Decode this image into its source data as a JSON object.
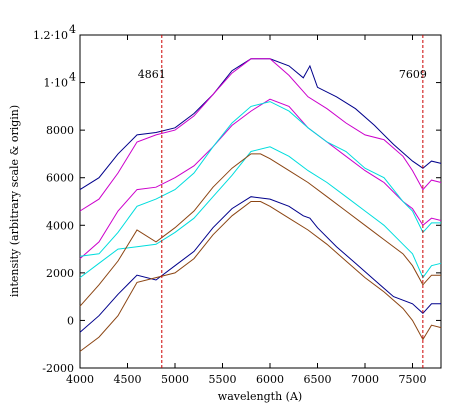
{
  "chart_data": {
    "type": "line",
    "xlabel": "wavelength (A)",
    "ylabel": "intensity (arbitrary scale & origin)",
    "xlim": [
      4000,
      7800
    ],
    "ylim": [
      -2000,
      12000
    ],
    "grid": false,
    "legend": "none",
    "x_ticks": [
      4000,
      4500,
      5000,
      5500,
      6000,
      6500,
      7000,
      7500
    ],
    "y_ticks": [
      {
        "value": -2000,
        "label": "-2000"
      },
      {
        "value": 0,
        "label": "0"
      },
      {
        "value": 2000,
        "label": "2000"
      },
      {
        "value": 4000,
        "label": "4000"
      },
      {
        "value": 6000,
        "label": "6000"
      },
      {
        "value": 8000,
        "label": "8000"
      },
      {
        "value": 10000,
        "label": "1·10",
        "exp": "4"
      },
      {
        "value": 12000,
        "label": "1.2·10",
        "exp": "4"
      }
    ],
    "vlines": [
      {
        "x": 4861,
        "label": "4861",
        "label_y": 10200,
        "color": "#cc0000"
      },
      {
        "x": 7609,
        "label": "7609",
        "label_y": 10200,
        "color": "#cc0000"
      }
    ],
    "series": [
      {
        "color": "#00008b",
        "points": [
          [
            4000,
            5500
          ],
          [
            4200,
            6000
          ],
          [
            4400,
            7000
          ],
          [
            4600,
            7800
          ],
          [
            4800,
            7900
          ],
          [
            5000,
            8100
          ],
          [
            5200,
            8700
          ],
          [
            5400,
            9500
          ],
          [
            5600,
            10500
          ],
          [
            5800,
            11000
          ],
          [
            6000,
            11000
          ],
          [
            6200,
            10700
          ],
          [
            6350,
            10200
          ],
          [
            6420,
            10700
          ],
          [
            6500,
            9800
          ],
          [
            6700,
            9400
          ],
          [
            6900,
            8900
          ],
          [
            7100,
            8200
          ],
          [
            7300,
            7400
          ],
          [
            7500,
            6700
          ],
          [
            7609,
            6400
          ],
          [
            7700,
            6700
          ],
          [
            7800,
            6600
          ]
        ]
      },
      {
        "color": "#cc00cc",
        "points": [
          [
            4000,
            4600
          ],
          [
            4200,
            5100
          ],
          [
            4400,
            6200
          ],
          [
            4600,
            7500
          ],
          [
            4800,
            7800
          ],
          [
            5000,
            8000
          ],
          [
            5200,
            8600
          ],
          [
            5400,
            9500
          ],
          [
            5600,
            10400
          ],
          [
            5800,
            11000
          ],
          [
            6000,
            11000
          ],
          [
            6200,
            10300
          ],
          [
            6400,
            9400
          ],
          [
            6600,
            8900
          ],
          [
            6800,
            8300
          ],
          [
            7000,
            7800
          ],
          [
            7200,
            7600
          ],
          [
            7400,
            6900
          ],
          [
            7500,
            6300
          ],
          [
            7609,
            5500
          ],
          [
            7700,
            5900
          ],
          [
            7800,
            5800
          ]
        ]
      },
      {
        "color": "#cc00cc",
        "points": [
          [
            4000,
            2600
          ],
          [
            4200,
            3300
          ],
          [
            4400,
            4600
          ],
          [
            4600,
            5500
          ],
          [
            4800,
            5600
          ],
          [
            5000,
            6000
          ],
          [
            5200,
            6500
          ],
          [
            5400,
            7300
          ],
          [
            5600,
            8200
          ],
          [
            5800,
            8800
          ],
          [
            6000,
            9300
          ],
          [
            6200,
            9000
          ],
          [
            6400,
            8100
          ],
          [
            6600,
            7500
          ],
          [
            6800,
            6900
          ],
          [
            7000,
            6300
          ],
          [
            7200,
            5800
          ],
          [
            7400,
            5000
          ],
          [
            7500,
            4700
          ],
          [
            7609,
            4000
          ],
          [
            7700,
            4300
          ],
          [
            7800,
            4200
          ]
        ]
      },
      {
        "color": "#00dddd",
        "points": [
          [
            4000,
            2700
          ],
          [
            4200,
            2800
          ],
          [
            4400,
            3700
          ],
          [
            4600,
            4800
          ],
          [
            4800,
            5100
          ],
          [
            5000,
            5500
          ],
          [
            5200,
            6200
          ],
          [
            5400,
            7300
          ],
          [
            5600,
            8300
          ],
          [
            5800,
            9000
          ],
          [
            6000,
            9200
          ],
          [
            6200,
            8800
          ],
          [
            6400,
            8100
          ],
          [
            6600,
            7500
          ],
          [
            6800,
            7100
          ],
          [
            7000,
            6400
          ],
          [
            7200,
            6000
          ],
          [
            7400,
            5000
          ],
          [
            7500,
            4600
          ],
          [
            7609,
            3700
          ],
          [
            7700,
            4100
          ],
          [
            7800,
            4100
          ]
        ]
      },
      {
        "color": "#00dddd",
        "points": [
          [
            4000,
            1800
          ],
          [
            4200,
            2400
          ],
          [
            4400,
            3000
          ],
          [
            4600,
            3100
          ],
          [
            4800,
            3200
          ],
          [
            5000,
            3700
          ],
          [
            5200,
            4300
          ],
          [
            5400,
            5200
          ],
          [
            5600,
            6100
          ],
          [
            5800,
            7100
          ],
          [
            6000,
            7300
          ],
          [
            6200,
            6900
          ],
          [
            6400,
            6300
          ],
          [
            6600,
            5800
          ],
          [
            6800,
            5200
          ],
          [
            7000,
            4600
          ],
          [
            7200,
            4000
          ],
          [
            7400,
            3200
          ],
          [
            7500,
            2800
          ],
          [
            7609,
            1800
          ],
          [
            7700,
            2300
          ],
          [
            7800,
            2400
          ]
        ]
      },
      {
        "color": "#8b4513",
        "points": [
          [
            4000,
            600
          ],
          [
            4200,
            1500
          ],
          [
            4400,
            2500
          ],
          [
            4600,
            3800
          ],
          [
            4800,
            3300
          ],
          [
            5000,
            3900
          ],
          [
            5200,
            4600
          ],
          [
            5400,
            5600
          ],
          [
            5600,
            6400
          ],
          [
            5800,
            7000
          ],
          [
            5900,
            7000
          ],
          [
            6000,
            6800
          ],
          [
            6200,
            6300
          ],
          [
            6400,
            5800
          ],
          [
            6600,
            5200
          ],
          [
            6800,
            4600
          ],
          [
            7000,
            4000
          ],
          [
            7200,
            3400
          ],
          [
            7400,
            2800
          ],
          [
            7500,
            2300
          ],
          [
            7609,
            1500
          ],
          [
            7700,
            1900
          ],
          [
            7800,
            1900
          ]
        ]
      },
      {
        "color": "#00008b",
        "points": [
          [
            4000,
            -500
          ],
          [
            4200,
            200
          ],
          [
            4400,
            1100
          ],
          [
            4600,
            1900
          ],
          [
            4800,
            1700
          ],
          [
            5000,
            2300
          ],
          [
            5200,
            2900
          ],
          [
            5400,
            3900
          ],
          [
            5600,
            4700
          ],
          [
            5800,
            5200
          ],
          [
            6000,
            5100
          ],
          [
            6200,
            4800
          ],
          [
            6350,
            4400
          ],
          [
            6420,
            4300
          ],
          [
            6500,
            3900
          ],
          [
            6700,
            3100
          ],
          [
            6900,
            2400
          ],
          [
            7100,
            1700
          ],
          [
            7300,
            1000
          ],
          [
            7500,
            700
          ],
          [
            7609,
            300
          ],
          [
            7700,
            700
          ],
          [
            7800,
            700
          ]
        ]
      },
      {
        "color": "#8b4513",
        "points": [
          [
            4000,
            -1300
          ],
          [
            4200,
            -700
          ],
          [
            4400,
            200
          ],
          [
            4600,
            1600
          ],
          [
            4800,
            1800
          ],
          [
            5000,
            2000
          ],
          [
            5200,
            2600
          ],
          [
            5400,
            3600
          ],
          [
            5600,
            4400
          ],
          [
            5800,
            5000
          ],
          [
            5900,
            5000
          ],
          [
            6000,
            4800
          ],
          [
            6200,
            4300
          ],
          [
            6400,
            3800
          ],
          [
            6600,
            3200
          ],
          [
            6800,
            2500
          ],
          [
            7000,
            1800
          ],
          [
            7200,
            1200
          ],
          [
            7400,
            500
          ],
          [
            7500,
            0
          ],
          [
            7609,
            -800
          ],
          [
            7700,
            -200
          ],
          [
            7800,
            -300
          ]
        ]
      }
    ]
  }
}
